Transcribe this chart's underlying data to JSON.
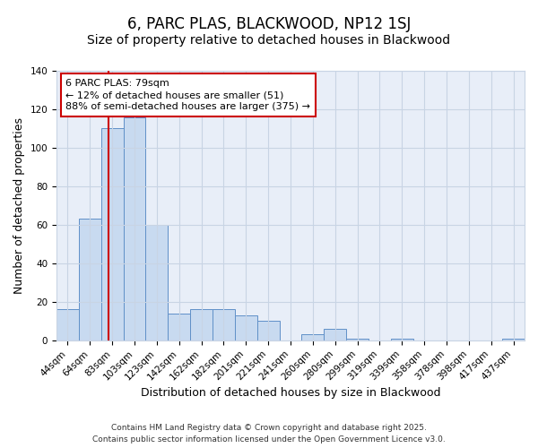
{
  "title": "6, PARC PLAS, BLACKWOOD, NP12 1SJ",
  "subtitle": "Size of property relative to detached houses in Blackwood",
  "xlabel": "Distribution of detached houses by size in Blackwood",
  "ylabel": "Number of detached properties",
  "bar_labels": [
    "44sqm",
    "64sqm",
    "83sqm",
    "103sqm",
    "123sqm",
    "142sqm",
    "162sqm",
    "182sqm",
    "201sqm",
    "221sqm",
    "241sqm",
    "260sqm",
    "280sqm",
    "299sqm",
    "319sqm",
    "339sqm",
    "358sqm",
    "378sqm",
    "398sqm",
    "417sqm",
    "437sqm"
  ],
  "bar_values": [
    16,
    63,
    110,
    116,
    60,
    14,
    16,
    16,
    13,
    10,
    0,
    3,
    6,
    1,
    0,
    1,
    0,
    0,
    0,
    0,
    1
  ],
  "bar_color": "#c8daf0",
  "bar_edgecolor": "#6090c8",
  "vline_x": 1.82,
  "vline_color": "#cc0000",
  "ylim": [
    0,
    140
  ],
  "yticks": [
    0,
    20,
    40,
    60,
    80,
    100,
    120,
    140
  ],
  "annotation_title": "6 PARC PLAS: 79sqm",
  "annotation_line1": "← 12% of detached houses are smaller (51)",
  "annotation_line2": "88% of semi-detached houses are larger (375) →",
  "footer_line1": "Contains HM Land Registry data © Crown copyright and database right 2025.",
  "footer_line2": "Contains public sector information licensed under the Open Government Licence v3.0.",
  "background_color": "#ffffff",
  "plot_background": "#e8eef8",
  "grid_color": "#c8d4e4",
  "title_fontsize": 12,
  "subtitle_fontsize": 10,
  "axis_label_fontsize": 9,
  "tick_fontsize": 7.5,
  "footer_fontsize": 6.5,
  "annotation_fontsize": 8
}
